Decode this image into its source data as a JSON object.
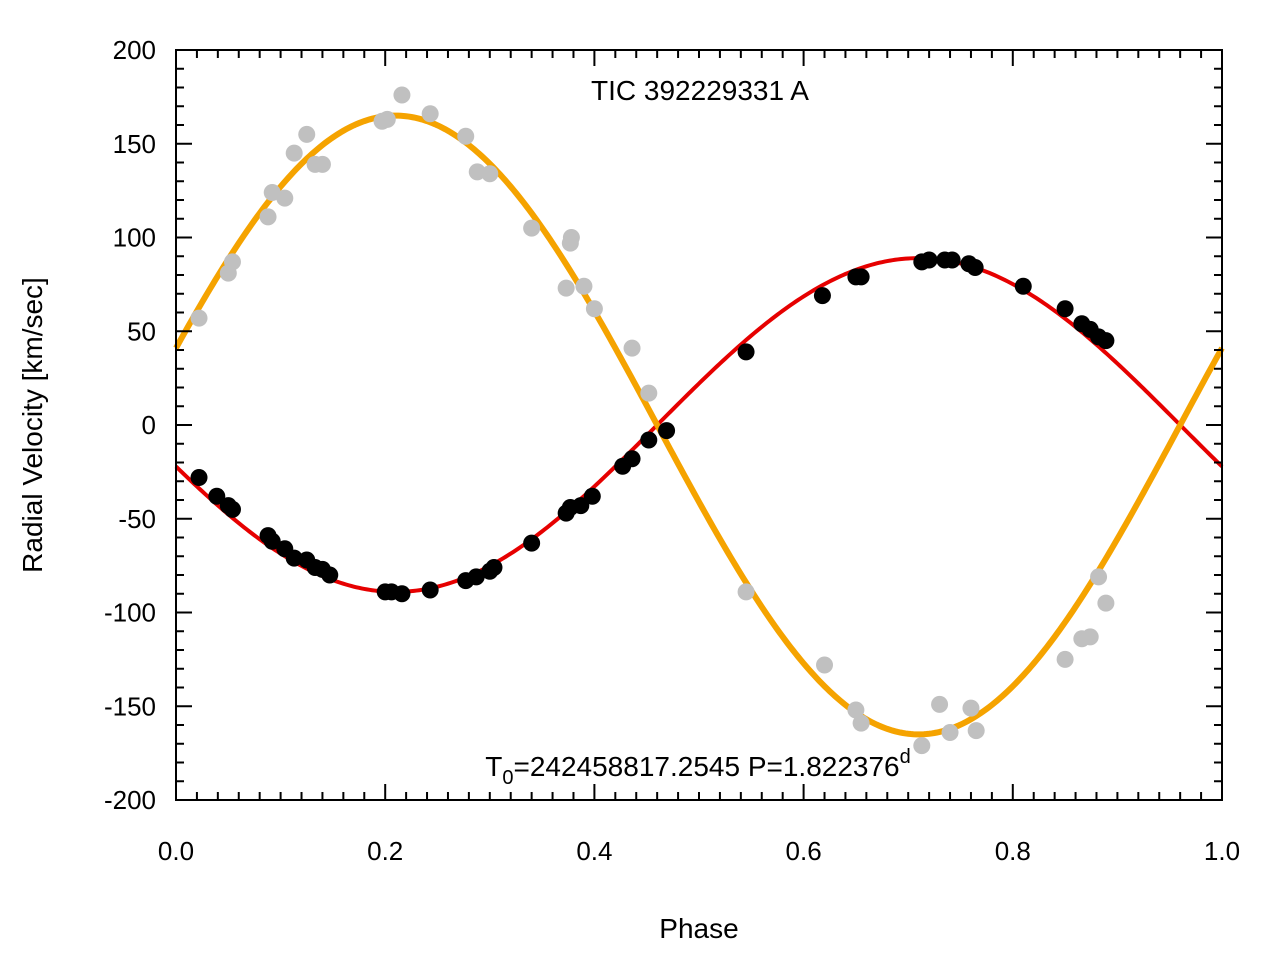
{
  "chart_data": {
    "type": "scatter",
    "title": "TIC 392229331 A",
    "xlabel": "Phase",
    "ylabel": "Radial Velocity [km/sec]",
    "xlim": [
      0.0,
      1.0
    ],
    "ylim": [
      -200,
      200
    ],
    "x_ticks": [
      0.0,
      0.2,
      0.4,
      0.6,
      0.8,
      1.0
    ],
    "x_tick_labels": [
      "0.0",
      "0.2",
      "0.4",
      "0.6",
      "0.8",
      "1.0"
    ],
    "y_ticks": [
      200,
      150,
      100,
      50,
      0,
      -50,
      -100,
      -150,
      -200
    ],
    "y_tick_labels": [
      "200",
      "150",
      "100",
      "50",
      "0",
      "-50",
      "-100",
      "-150",
      "-200"
    ],
    "annotation": {
      "prefix": "T",
      "subscript": "0",
      "text": "=242458817.2545 P=1.822376",
      "superscript": "d"
    },
    "colors": {
      "primary_points": "#000000",
      "secondary_points": "#c0c0c0",
      "primary_curve": "#e60000",
      "secondary_curve": "#f5a300"
    },
    "curves": [
      {
        "name": "primary-fit",
        "gamma": 0,
        "amplitude": 89,
        "phase_of_min": 0.21
      },
      {
        "name": "secondary-fit",
        "gamma": 0,
        "amplitude": 165,
        "phase_of_max": 0.21
      }
    ],
    "series": [
      {
        "name": "primary",
        "x": [
          0.022,
          0.039,
          0.05,
          0.054,
          0.088,
          0.092,
          0.104,
          0.113,
          0.125,
          0.133,
          0.14,
          0.147,
          0.2,
          0.206,
          0.216,
          0.243,
          0.277,
          0.287,
          0.3,
          0.304,
          0.34,
          0.373,
          0.377,
          0.387,
          0.398,
          0.427,
          0.436,
          0.452,
          0.469,
          0.545,
          0.618,
          0.65,
          0.655,
          0.713,
          0.72,
          0.735,
          0.742,
          0.758,
          0.764,
          0.81,
          0.85,
          0.866,
          0.874,
          0.882,
          0.889
        ],
        "y": [
          -28,
          -38,
          -43,
          -45,
          -59,
          -62,
          -66,
          -71,
          -72,
          -76,
          -77,
          -80,
          -89,
          -89,
          -90,
          -88,
          -83,
          -81,
          -78,
          -76,
          -63,
          -47,
          -44,
          -43,
          -38,
          -22,
          -18,
          -8,
          -3,
          39,
          69,
          79,
          79,
          87,
          88,
          88,
          88,
          86,
          84,
          74,
          62,
          54,
          51,
          47,
          45
        ]
      },
      {
        "name": "secondary",
        "x": [
          0.022,
          0.05,
          0.054,
          0.088,
          0.092,
          0.104,
          0.113,
          0.125,
          0.133,
          0.14,
          0.197,
          0.202,
          0.216,
          0.243,
          0.277,
          0.288,
          0.3,
          0.34,
          0.373,
          0.377,
          0.378,
          0.39,
          0.4,
          0.436,
          0.452,
          0.545,
          0.62,
          0.65,
          0.655,
          0.713,
          0.73,
          0.74,
          0.76,
          0.765,
          0.85,
          0.866,
          0.874,
          0.882,
          0.889
        ],
        "y": [
          57,
          81,
          87,
          111,
          124,
          121,
          145,
          155,
          139,
          139,
          162,
          163,
          176,
          166,
          154,
          135,
          134,
          105,
          73,
          97,
          100,
          74,
          62,
          41,
          17,
          -89,
          -128,
          -152,
          -159,
          -171,
          -149,
          -164,
          -151,
          -163,
          -125,
          -114,
          -113,
          -81,
          -95
        ]
      }
    ]
  }
}
